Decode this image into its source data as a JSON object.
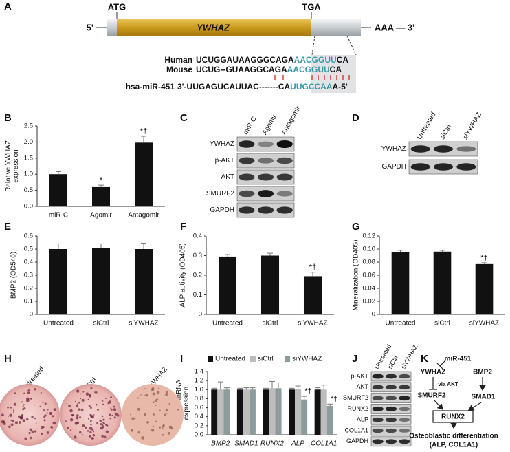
{
  "panel_labels": [
    "A",
    "B",
    "C",
    "D",
    "E",
    "F",
    "G",
    "H",
    "I",
    "J",
    "K"
  ],
  "gene_diagram": {
    "start_codon": "ATG",
    "stop_codon": "TGA",
    "five_prime": "5'",
    "gene": "YWHAZ",
    "tail": "AAA — 3'",
    "alignment": [
      {
        "label": "Human",
        "parts": [
          "UCUGGAUAAGGGCAGA",
          "AACGGUU",
          "CA"
        ]
      },
      {
        "label": "Mouse",
        "parts": [
          "UCUG--GUAAGGCAGA",
          "AACGGUU",
          "CA"
        ]
      },
      {
        "label": "hsa-miR-451",
        "parts": [
          "3'-UUGAGUCAUUAC-------CA",
          "UUGCCAA",
          "A-5'"
        ]
      }
    ]
  },
  "chart_data": [
    {
      "type": "bar",
      "ylabel": [
        "Relative YWHAZ",
        "expression"
      ],
      "categories": [
        "miR-C",
        "Agomir",
        "Antagomir"
      ],
      "values": [
        1.0,
        0.6,
        1.98
      ],
      "errors": [
        0.08,
        0.06,
        0.2
      ],
      "annotations": [
        null,
        "*",
        "*†"
      ],
      "color": "#111111",
      "ylim": [
        0,
        2.5
      ],
      "yticks": [
        {
          "value": 0,
          "label": "0.0"
        },
        0.5,
        {
          "value": 1,
          "label": "1.0"
        },
        1.5,
        {
          "value": 2,
          "label": "2.0"
        },
        2.5
      ]
    },
    {
      "type": "bar",
      "ylabel": [
        "BMP2 (OD540)"
      ],
      "categories": [
        "Untreated",
        "siCtrl",
        "siYWHAZ"
      ],
      "values": [
        0.5,
        0.51,
        0.5
      ],
      "errors": [
        0.04,
        0.03,
        0.045
      ],
      "annotations": [
        null,
        null,
        null
      ],
      "color": "#111111",
      "ylim": [
        0,
        0.6
      ],
      "yticks": [
        0,
        0.1,
        0.2,
        0.3,
        0.4,
        0.5,
        0.6
      ]
    },
    {
      "type": "bar",
      "ylabel": [
        "ALP activity (OD405)"
      ],
      "categories": [
        "Untreated",
        "siCtrl",
        "siYWHAZ"
      ],
      "values": [
        0.295,
        0.3,
        0.195
      ],
      "errors": [
        0.01,
        0.012,
        0.02
      ],
      "annotations": [
        null,
        null,
        "*†"
      ],
      "color": "#111111",
      "ylim": [
        0,
        0.4
      ],
      "yticks": [
        0,
        0.1,
        0.2,
        0.3,
        0.4
      ]
    },
    {
      "type": "bar",
      "ylabel": [
        "Mineralization (OD405)"
      ],
      "categories": [
        "Untreated",
        "siCtrl",
        "siYWHAZ"
      ],
      "values": [
        0.095,
        0.096,
        0.077
      ],
      "errors": [
        0.003,
        0.002,
        0.002
      ],
      "annotations": [
        null,
        null,
        "*†"
      ],
      "color": "#111111",
      "ylim": [
        0,
        0.12
      ],
      "yticks": [
        0,
        0.02,
        0.04,
        0.06,
        0.08,
        {
          "value": 0.1,
          "label": "0.10"
        },
        0.12
      ]
    },
    {
      "type": "bar",
      "ylabel": [
        "Relative mRNA",
        "expression"
      ],
      "categories": [
        "BMP2",
        "SMAD1",
        "RUNX2",
        "ALP",
        "COL1A1"
      ],
      "series": [
        {
          "name": "Untreated",
          "color": "#111111",
          "values": [
            1.0,
            1.0,
            1.0,
            1.0,
            1.0
          ],
          "errors": [
            0.03,
            0.03,
            0.03,
            0.03,
            0.04
          ],
          "annotations": [
            null,
            null,
            null,
            null,
            null
          ]
        },
        {
          "name": "siCtrl",
          "color": "#bdbdbd",
          "values": [
            1.0,
            1.0,
            1.03,
            1.02,
            1.0
          ],
          "errors": [
            0.17,
            0.04,
            0.15,
            0.06,
            0.1
          ],
          "annotations": [
            null,
            null,
            null,
            null,
            null
          ]
        },
        {
          "name": "siYWHAZ",
          "color": "#8c9b9b",
          "values": [
            1.0,
            1.0,
            1.03,
            0.78,
            0.64
          ],
          "errors": [
            0.04,
            0.04,
            0.12,
            0.07,
            0.04
          ],
          "annotations": [
            null,
            null,
            null,
            "*†",
            "*†"
          ]
        }
      ],
      "ylim": [
        0,
        1.4
      ],
      "yticks": [
        {
          "value": 0,
          "label": "0.0"
        },
        0.2,
        0.4,
        0.6,
        0.8,
        {
          "value": 1,
          "label": "1.0"
        },
        1.2,
        1.4
      ]
    }
  ],
  "blots": [
    {
      "lanes": [
        "miR-C",
        "Agomir",
        "Antagomir"
      ],
      "rows": [
        "YWHAZ",
        "p-AKT",
        "AKT",
        "SMURF2",
        "GAPDH"
      ]
    },
    {
      "lanes": [
        "Untreated",
        "siCtrl",
        "siYWHAZ"
      ],
      "rows": [
        "YWHAZ",
        "GAPDH"
      ]
    },
    {
      "lanes": [
        "Untreated",
        "siCtrl",
        "siYWHAZ"
      ],
      "rows": [
        "p-AKT",
        "AKT",
        "SMURF2",
        "RUNX2",
        "ALP",
        "COL1A1",
        "GAPDH"
      ]
    }
  ],
  "staining": {
    "lanes": [
      "Untreated",
      "siCtrl",
      "siYWHAZ"
    ]
  },
  "pathway": {
    "mirna": "miR-451",
    "target": "YWHAZ",
    "via": "via AKT",
    "ligand": "BMP2",
    "inhibitor": "SMURF2",
    "effector": "SMAD1",
    "factor": "RUNX2",
    "outcome": "Osteoblastic differentiation",
    "markers": "(ALP, COL1A1)"
  }
}
